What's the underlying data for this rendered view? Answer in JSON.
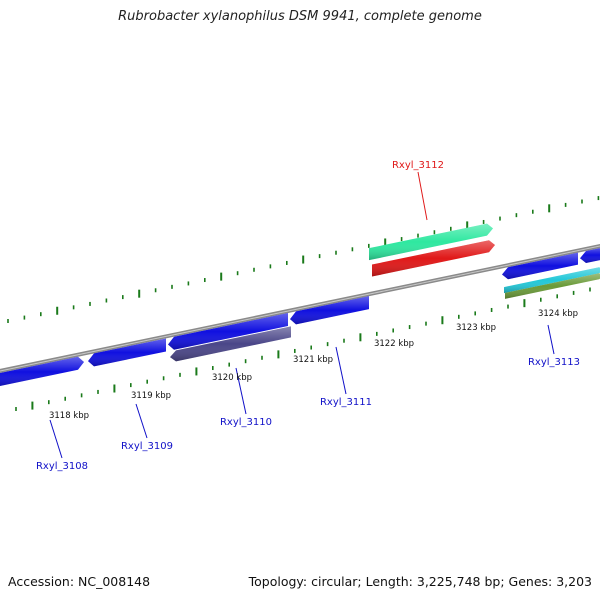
{
  "title": "Rubrobacter xylanophilus DSM 9941, complete genome",
  "footer": {
    "accession": "Accession: NC_008148",
    "stats": "Topology: circular; Length: 3,225,748 bp; Genes: 3,203"
  },
  "colors": {
    "gene_default": "#1010e0",
    "gene_highlight": "#e01818",
    "gene_purple": "#4a4688",
    "gene_teal": "#2ee8a0",
    "gene_cyan": "#22c8d8",
    "gene_olive": "#6a9a38",
    "backbone": "#8a8a8a",
    "tick": "#1a7a1a"
  },
  "ticks": [
    {
      "label": "3118 kbp"
    },
    {
      "label": "3119 kbp"
    },
    {
      "label": "3120 kbp"
    },
    {
      "label": "3121 kbp"
    },
    {
      "label": "3122 kbp"
    },
    {
      "label": "3123 kbp"
    },
    {
      "label": "3124 kbp"
    }
  ],
  "gene_labels": [
    {
      "name": "Rxyl_3108",
      "color": "#1010c8"
    },
    {
      "name": "Rxyl_3109",
      "color": "#1010c8"
    },
    {
      "name": "Rxyl_3110",
      "color": "#1010c8"
    },
    {
      "name": "Rxyl_3111",
      "color": "#1010c8"
    },
    {
      "name": "Rxyl_3112",
      "color": "#e01818"
    },
    {
      "name": "Rxyl_3113",
      "color": "#1010c8"
    }
  ]
}
